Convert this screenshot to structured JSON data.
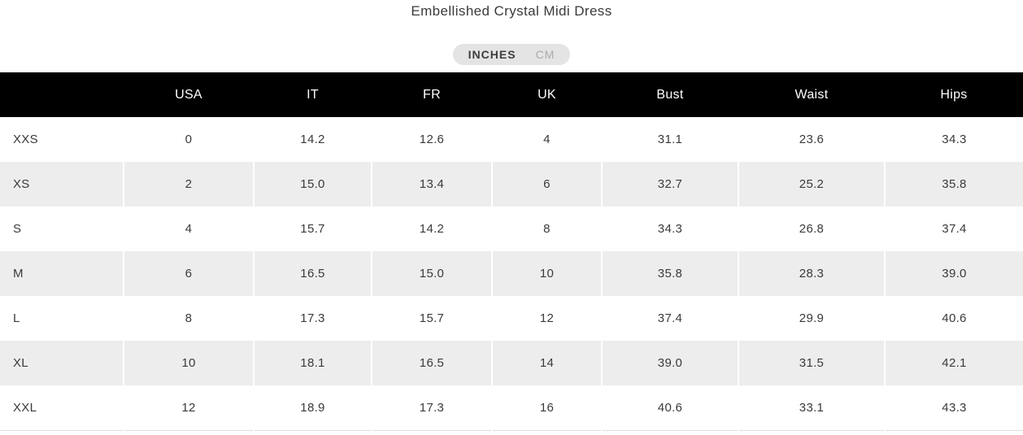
{
  "page": {
    "title": "Embellished Crystal Midi Dress"
  },
  "unit_toggle": {
    "options": [
      {
        "label": "INCHES",
        "active": true
      },
      {
        "label": "CM",
        "active": false
      }
    ]
  },
  "size_chart": {
    "columns": [
      "",
      "USA",
      "IT",
      "FR",
      "UK",
      "Bust",
      "Waist",
      "Hips"
    ],
    "column_keys": [
      "size",
      "usa",
      "it",
      "fr",
      "uk",
      "bust",
      "waist",
      "hips"
    ],
    "rows": [
      {
        "size": "XXS",
        "values": [
          "0",
          "14.2",
          "12.6",
          "4",
          "31.1",
          "23.6",
          "34.3"
        ]
      },
      {
        "size": "XS",
        "values": [
          "2",
          "15.0",
          "13.4",
          "6",
          "32.7",
          "25.2",
          "35.8"
        ]
      },
      {
        "size": "S",
        "values": [
          "4",
          "15.7",
          "14.2",
          "8",
          "34.3",
          "26.8",
          "37.4"
        ]
      },
      {
        "size": "M",
        "values": [
          "6",
          "16.5",
          "15.0",
          "10",
          "35.8",
          "28.3",
          "39.0"
        ]
      },
      {
        "size": "L",
        "values": [
          "8",
          "17.3",
          "15.7",
          "12",
          "37.4",
          "29.9",
          "40.6"
        ]
      },
      {
        "size": "XL",
        "values": [
          "10",
          "18.1",
          "16.5",
          "14",
          "39.0",
          "31.5",
          "42.1"
        ]
      },
      {
        "size": "XXL",
        "values": [
          "12",
          "18.9",
          "17.3",
          "16",
          "40.6",
          "33.1",
          "43.3"
        ]
      }
    ]
  },
  "colors": {
    "header_bg": "#000000",
    "header_text": "#ffffff",
    "row_alt_bg": "#ededed",
    "body_text": "#3a3a3a",
    "toggle_bg": "#e4e4e4",
    "toggle_active_text": "#3d3d3d",
    "toggle_inactive_text": "#ababab",
    "table_bottom_border": "#dcdcdc"
  }
}
